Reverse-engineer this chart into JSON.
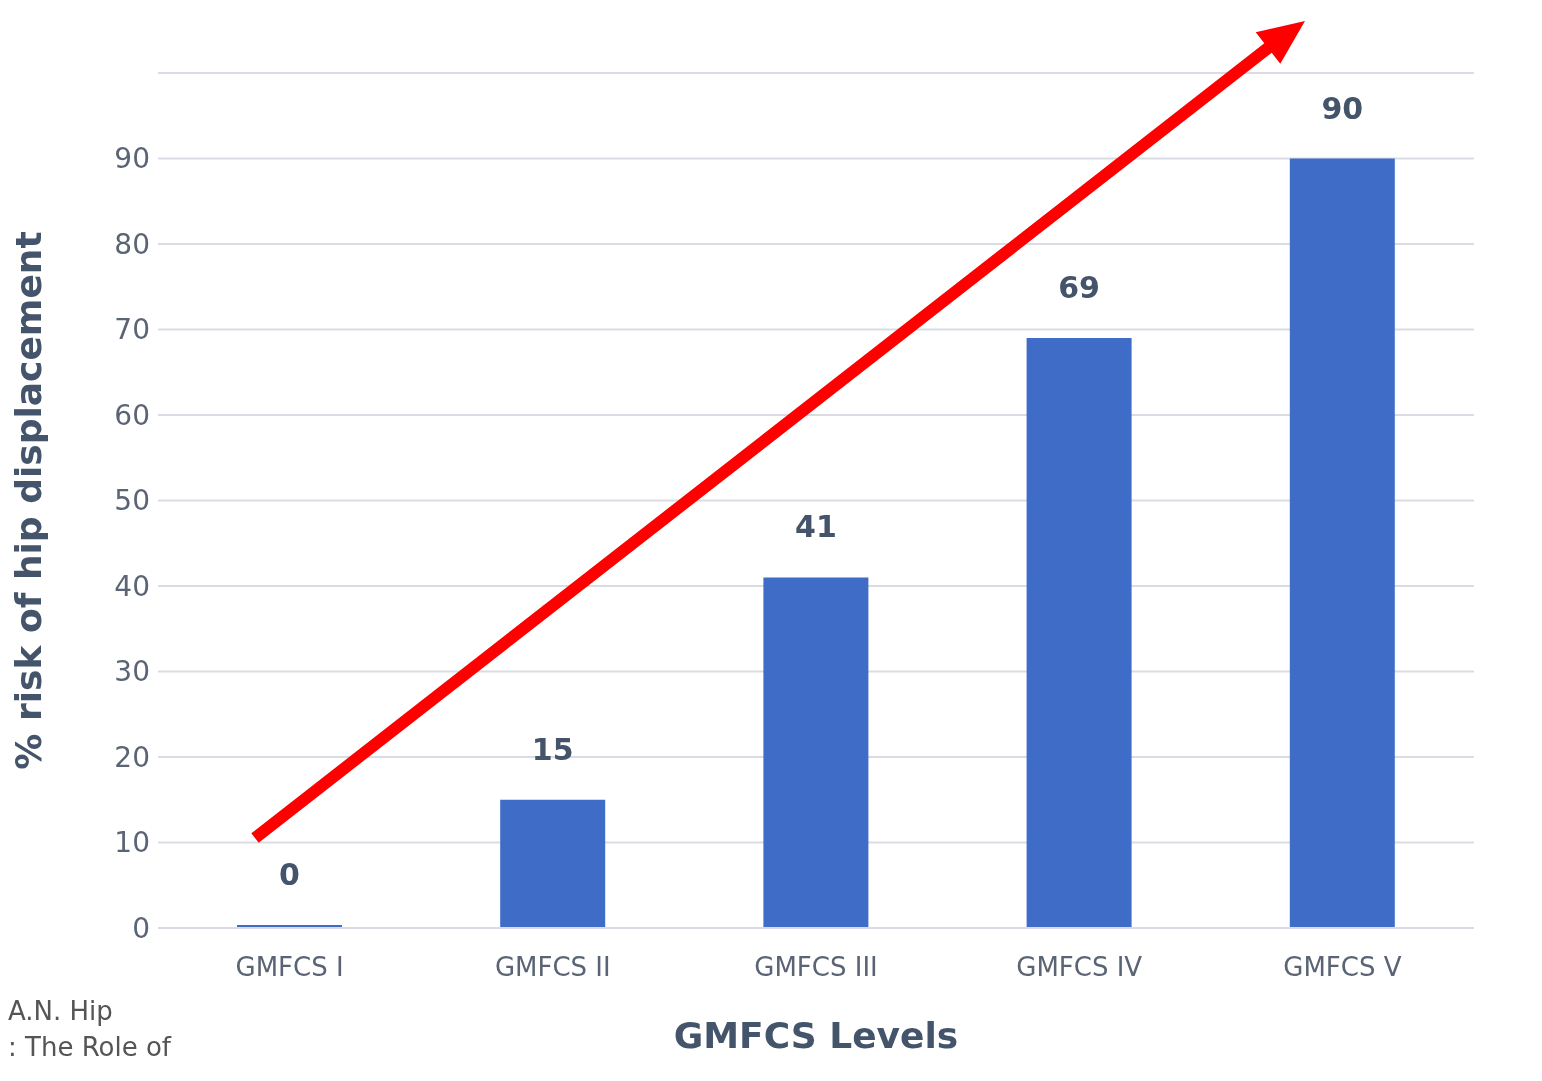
{
  "chart_data": {
    "type": "bar",
    "xlabel": "GMFCS Levels",
    "ylabel": "% risk of hip displacement",
    "categories": [
      "GMFCS I",
      "GMFCS II",
      "GMFCS III",
      "GMFCS IV",
      "GMFCS V"
    ],
    "values": [
      0,
      15,
      41,
      69,
      90
    ],
    "color": "#3f6cc6",
    "ylim": [
      0,
      100
    ],
    "yticks": [
      0,
      10,
      20,
      30,
      40,
      50,
      60,
      70,
      80,
      90,
      {
        "value": 100,
        "label": null
      }
    ],
    "grid": "y",
    "data_labels": true,
    "annotations": [
      "A.N. Hip",
      ": The Role of"
    ]
  }
}
